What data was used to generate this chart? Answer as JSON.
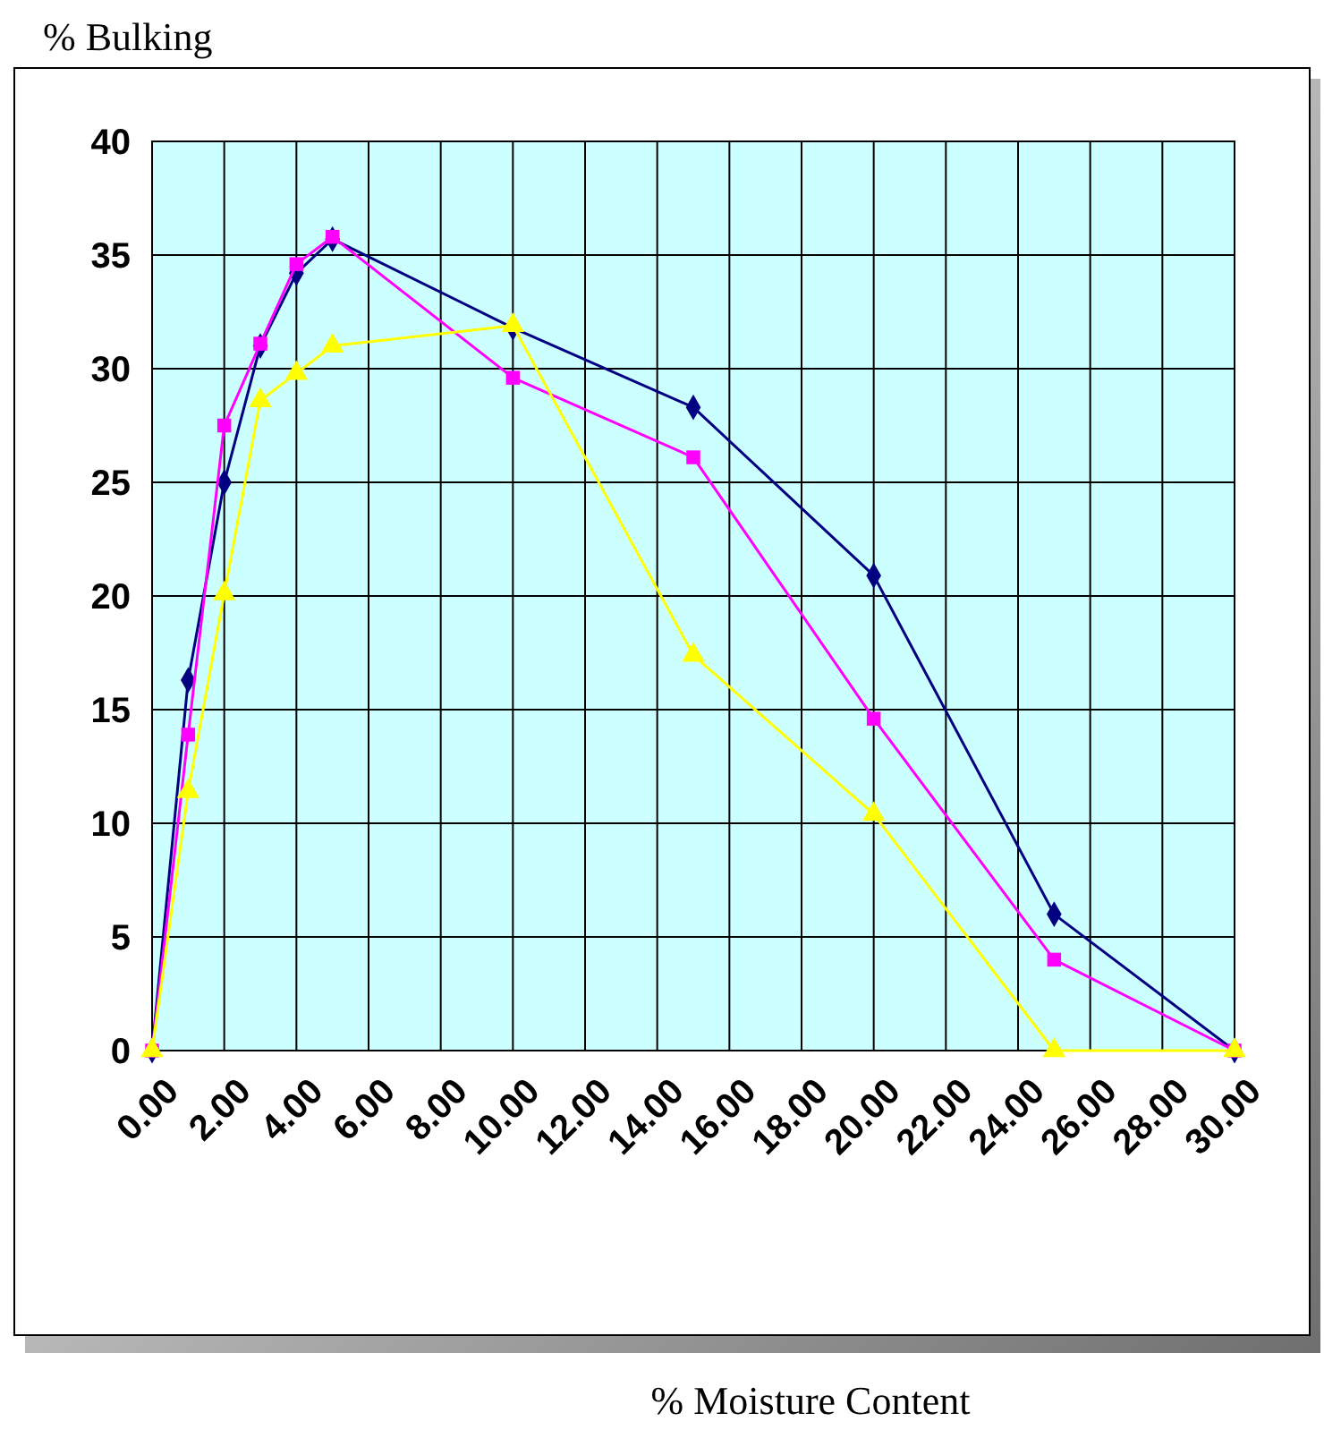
{
  "chart_data": {
    "type": "line",
    "ylabel": "% Bulking",
    "annotations": [
      "% Moisture Content"
    ],
    "x": [
      0,
      1,
      2,
      3,
      4,
      5,
      10,
      15,
      20,
      25,
      30
    ],
    "series": [
      {
        "color": "#000080",
        "marker": "diamond",
        "values": [
          0,
          16.3,
          25,
          31,
          34.2,
          35.7,
          31.8,
          28.3,
          20.9,
          6,
          0
        ]
      },
      {
        "color": "#ff00ff",
        "marker": "square",
        "values": [
          0,
          13.9,
          27.5,
          31.1,
          34.6,
          35.8,
          29.6,
          26.1,
          14.6,
          4,
          0
        ]
      },
      {
        "color": "#ffff00",
        "marker": "triangle",
        "values": [
          0,
          11.4,
          20.1,
          28.6,
          29.8,
          31,
          31.9,
          17.4,
          10.4,
          0,
          0
        ]
      }
    ],
    "xlim": [
      0,
      30
    ],
    "ylim": [
      0,
      40
    ],
    "xticks": [
      {
        "value": 0,
        "label": "0.00"
      },
      {
        "value": 2,
        "label": "2.00"
      },
      {
        "value": 4,
        "label": "4.00"
      },
      {
        "value": 6,
        "label": "6.00"
      },
      {
        "value": 8,
        "label": "8.00"
      },
      {
        "value": 10,
        "label": "10.00"
      },
      {
        "value": 12,
        "label": "12.00"
      },
      {
        "value": 14,
        "label": "14.00"
      },
      {
        "value": 16,
        "label": "16.00"
      },
      {
        "value": 18,
        "label": "18.00"
      },
      {
        "value": 20,
        "label": "20.00"
      },
      {
        "value": 22,
        "label": "22.00"
      },
      {
        "value": 24,
        "label": "24.00"
      },
      {
        "value": 26,
        "label": "26.00"
      },
      {
        "value": 28,
        "label": "28.00"
      },
      {
        "value": 30,
        "label": "30.00"
      }
    ],
    "yticks": [
      0,
      5,
      10,
      15,
      20,
      25,
      30,
      35,
      40
    ],
    "grid": true
  }
}
